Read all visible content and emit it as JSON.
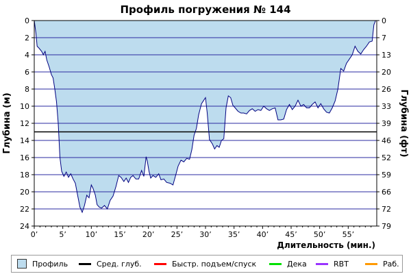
{
  "chart_data": {
    "type": "area",
    "title": "Профиль погружения № 144",
    "xlabel": "Длительность (мин.)",
    "ylabel_left": "Глубина (м)",
    "ylabel_right": "Глубина (фт)",
    "xlim": [
      0,
      60
    ],
    "ylim": [
      24,
      0
    ],
    "x_ticks": [
      "0’",
      "5’",
      "10’",
      "15’",
      "20’",
      "25’",
      "30’",
      "35’",
      "40’",
      "45’",
      "50’",
      "55’"
    ],
    "y_ticks_left": [
      "0",
      "2",
      "4",
      "6",
      "8",
      "10",
      "12",
      "14",
      "16",
      "18",
      "20",
      "22",
      "24"
    ],
    "y_ticks_right": [
      "0",
      "7",
      "13",
      "20",
      "26",
      "33",
      "39",
      "46",
      "52",
      "59",
      "66",
      "72",
      "79"
    ],
    "avg_depth": 13.0,
    "colors": {
      "profile_fill": "#bddcee",
      "profile_line": "#000080",
      "grid": "#2a2aa0",
      "avg": "#000000"
    },
    "series": [
      {
        "name": "Профиль",
        "x": [
          0,
          0.3,
          0.5,
          0.8,
          1.3,
          1.6,
          1.9,
          2.2,
          2.6,
          3.0,
          3.3,
          3.6,
          3.9,
          4.2,
          4.5,
          4.8,
          5.2,
          5.6,
          6.0,
          6.4,
          6.8,
          7.2,
          7.6,
          8.0,
          8.4,
          8.8,
          9.2,
          9.6,
          10.0,
          10.3,
          10.7,
          11.0,
          11.4,
          11.8,
          12.3,
          12.8,
          13.3,
          13.8,
          14.3,
          14.8,
          15.2,
          15.7,
          16.1,
          16.5,
          16.9,
          17.3,
          17.8,
          18.3,
          18.8,
          19.2,
          19.6,
          19.8,
          20.1,
          20.4,
          20.8,
          21.3,
          21.8,
          22.2,
          22.7,
          23.2,
          23.8,
          24.3,
          24.8,
          25.2,
          25.7,
          26.2,
          26.7,
          27.2,
          27.6,
          28.0,
          28.4,
          28.8,
          29.3,
          29.7,
          30.0,
          30.3,
          30.7,
          31.2,
          31.6,
          32.0,
          32.4,
          32.8,
          33.2,
          33.6,
          34.0,
          34.4,
          34.8,
          35.2,
          35.7,
          36.2,
          36.7,
          37.2,
          37.7,
          38.2,
          38.7,
          39.2,
          39.7,
          40.2,
          40.7,
          41.2,
          41.7,
          42.2,
          42.7,
          43.2,
          43.7,
          44.2,
          44.7,
          45.2,
          45.7,
          46.2,
          46.7,
          47.2,
          47.7,
          48.2,
          48.7,
          49.2,
          49.7,
          50.2,
          50.7,
          51.2,
          51.7,
          52.2,
          52.7,
          53.2,
          53.7,
          54.2,
          54.7,
          55.2,
          55.7,
          56.2,
          56.7,
          57.2,
          57.7,
          58.2,
          58.7,
          59.2,
          59.5,
          59.8
        ],
        "depth": [
          0,
          1.5,
          3.0,
          3.2,
          3.6,
          4.0,
          3.6,
          4.6,
          5.4,
          6.3,
          6.7,
          8.0,
          9.5,
          12.0,
          16.0,
          17.6,
          18.2,
          17.7,
          18.3,
          17.9,
          18.5,
          19.0,
          20.4,
          21.8,
          22.4,
          21.6,
          20.4,
          20.7,
          19.2,
          19.6,
          20.4,
          21.5,
          21.8,
          21.9,
          21.6,
          22.0,
          21.0,
          20.5,
          19.4,
          18.1,
          18.3,
          18.8,
          18.4,
          18.9,
          18.3,
          18.1,
          18.5,
          18.5,
          17.5,
          18.2,
          15.9,
          16.4,
          17.6,
          18.4,
          18.1,
          18.3,
          17.9,
          18.6,
          18.5,
          18.9,
          19.0,
          19.2,
          18.0,
          17.0,
          16.3,
          16.5,
          16.1,
          16.2,
          15.1,
          13.4,
          12.6,
          11.0,
          9.7,
          9.3,
          9.0,
          10.8,
          13.9,
          14.4,
          15.0,
          14.6,
          14.8,
          14.0,
          13.8,
          10.2,
          8.8,
          9.0,
          9.9,
          10.2,
          10.6,
          10.8,
          10.8,
          10.9,
          10.5,
          10.3,
          10.6,
          10.4,
          10.5,
          10.0,
          10.3,
          10.5,
          10.3,
          10.2,
          11.6,
          11.6,
          11.5,
          10.4,
          9.8,
          10.4,
          10.0,
          9.3,
          10.0,
          9.8,
          10.2,
          10.2,
          9.8,
          9.5,
          10.2,
          9.7,
          10.3,
          10.7,
          10.8,
          10.2,
          9.4,
          8.0,
          5.6,
          5.9,
          5.0,
          4.5,
          4.0,
          3.0,
          3.6,
          3.9,
          3.4,
          3.0,
          2.5,
          2.4,
          0.5,
          0
        ]
      }
    ],
    "legend": [
      {
        "label": "Профиль",
        "kind": "box",
        "color": "#bddcee"
      },
      {
        "label": "Сред. глуб.",
        "kind": "line",
        "color": "#000000"
      },
      {
        "label": "Быстр. подъем/спуск",
        "kind": "line",
        "color": "#ff0000"
      },
      {
        "label": "Дека",
        "kind": "line",
        "color": "#00e000"
      },
      {
        "label": "RBT",
        "kind": "line",
        "color": "#9933ff"
      },
      {
        "label": "Раб.",
        "kind": "line",
        "color": "#ff9900"
      }
    ]
  }
}
